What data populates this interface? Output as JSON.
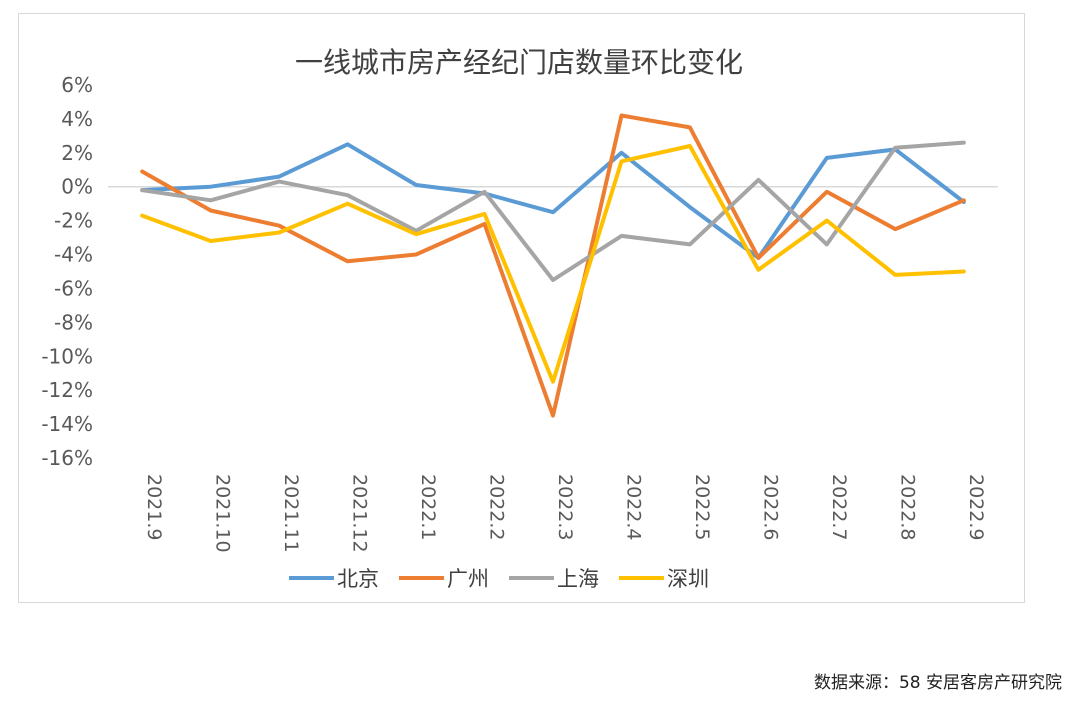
{
  "chart_data": {
    "type": "line",
    "title": "一线城市房产经纪门店数量环比变化",
    "categories": [
      "2021.9",
      "2021.10",
      "2021.11",
      "2021.12",
      "2022.1",
      "2022.2",
      "2022.3",
      "2022.4",
      "2022.5",
      "2022.6",
      "2022.7",
      "2022.8",
      "2022.9"
    ],
    "y_ticks": [
      "6%",
      "4%",
      "2%",
      "0%",
      "-2%",
      "-4%",
      "-6%",
      "-8%",
      "-10%",
      "-12%",
      "-14%",
      "-16%"
    ],
    "ylim": [
      -16,
      6
    ],
    "y_unit": "%",
    "grid": "zero-line only",
    "legend_position": "bottom",
    "series": [
      {
        "name": "北京",
        "color": "#5b9bd5",
        "values": [
          -0.2,
          0.0,
          0.6,
          2.5,
          0.1,
          -0.4,
          -1.5,
          2.0,
          -1.2,
          -4.2,
          1.7,
          2.2,
          -0.9
        ]
      },
      {
        "name": "广州",
        "color": "#ed7d31",
        "values": [
          0.9,
          -1.4,
          -2.3,
          -4.4,
          -4.0,
          -2.2,
          -13.5,
          4.2,
          3.5,
          -4.2,
          -0.3,
          -2.5,
          -0.8
        ]
      },
      {
        "name": "上海",
        "color": "#a5a5a5",
        "values": [
          -0.2,
          -0.8,
          0.3,
          -0.5,
          -2.6,
          -0.3,
          -5.5,
          -2.9,
          -3.4,
          0.4,
          -3.4,
          2.3,
          2.6
        ]
      },
      {
        "name": "深圳",
        "color": "#ffc000",
        "values": [
          -1.7,
          -3.2,
          -2.7,
          -1.0,
          -2.8,
          -1.6,
          -11.5,
          1.5,
          2.4,
          -4.9,
          -2.0,
          -5.2,
          -5.0
        ]
      }
    ]
  },
  "source_note": "数据来源：58 安居客房产研究院"
}
